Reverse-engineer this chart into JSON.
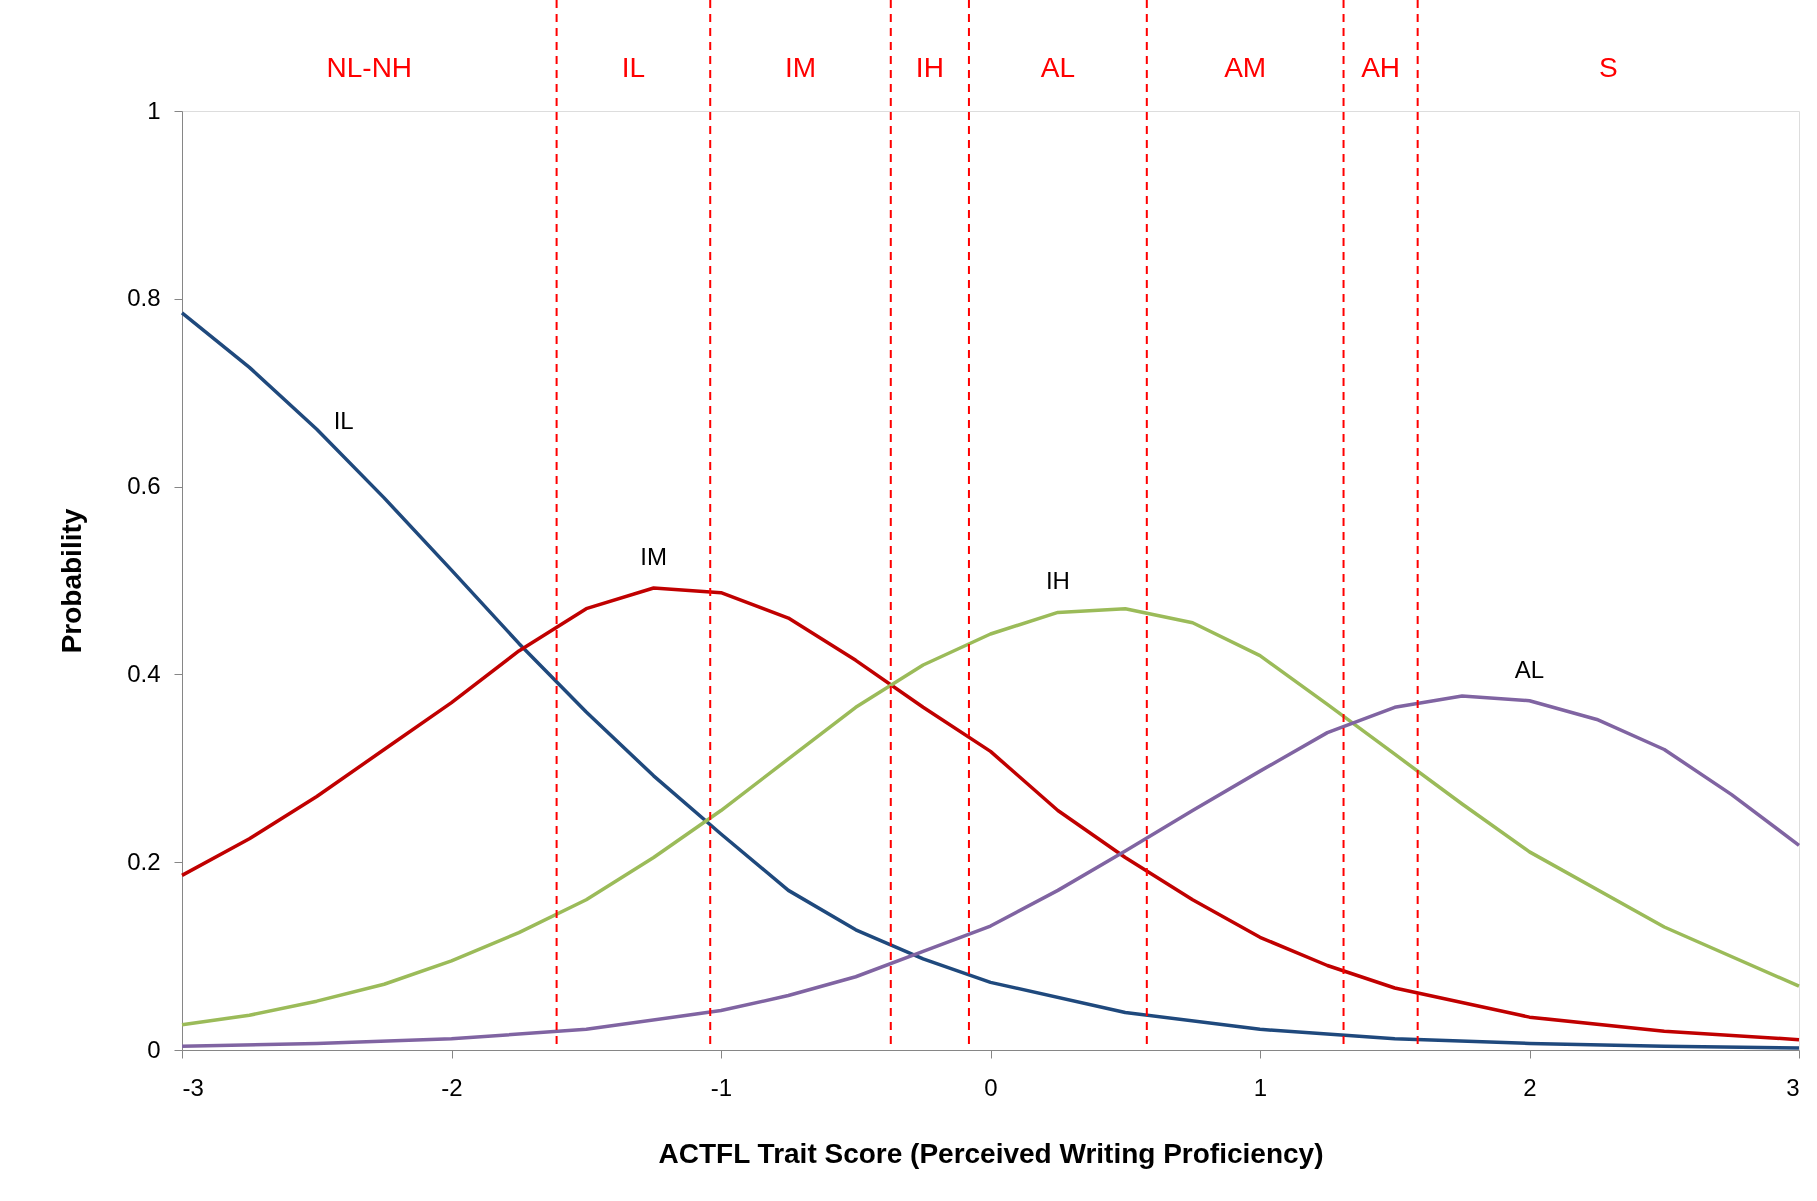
{
  "chart_data": {
    "type": "line",
    "xlabel": "ACTFL Trait Score (Perceived Writing Proficiency)",
    "ylabel": "Probability",
    "xlim": [
      -3,
      3
    ],
    "xticks": [
      -3,
      -2,
      -1,
      0,
      1,
      2,
      3
    ],
    "ylim": [
      0,
      1
    ],
    "yticks": [
      0,
      0.2,
      0.4,
      0.6,
      0.8,
      1
    ],
    "grid": false,
    "legend": false,
    "marker": "none",
    "line_style": "solid",
    "series": [
      {
        "color": "#1f497d",
        "x": [
          -3,
          -2.75,
          -2.5,
          -2.25,
          -2,
          -1.75,
          -1.5,
          -1.25,
          -1,
          -0.75,
          -0.5,
          -0.25,
          0,
          0.5,
          1,
          1.5,
          2,
          2.5,
          3
        ],
        "values": [
          0.785,
          0.727,
          0.661,
          0.588,
          0.511,
          0.433,
          0.36,
          0.292,
          0.23,
          0.17,
          0.128,
          0.097,
          0.072,
          0.04,
          0.022,
          0.012,
          0.007,
          0.004,
          0.002
        ]
      },
      {
        "color": "#c00000",
        "x": [
          -3,
          -2.75,
          -2.5,
          -2.25,
          -2,
          -1.75,
          -1.5,
          -1.25,
          -1,
          -0.75,
          -0.5,
          -0.25,
          0,
          0.25,
          0.5,
          0.75,
          1,
          1.25,
          1.5,
          2,
          2.5,
          3
        ],
        "values": [
          0.186,
          0.225,
          0.27,
          0.32,
          0.37,
          0.425,
          0.47,
          0.492,
          0.487,
          0.46,
          0.415,
          0.365,
          0.318,
          0.255,
          0.205,
          0.16,
          0.12,
          0.09,
          0.066,
          0.035,
          0.02,
          0.011
        ]
      },
      {
        "color": "#9bbb59",
        "x": [
          -3,
          -2.75,
          -2.5,
          -2.25,
          -2,
          -1.75,
          -1.5,
          -1.25,
          -1,
          -0.75,
          -0.5,
          -0.25,
          0,
          0.25,
          0.5,
          0.75,
          1,
          1.25,
          1.5,
          1.75,
          2,
          2.5,
          3
        ],
        "values": [
          0.027,
          0.037,
          0.052,
          0.07,
          0.095,
          0.125,
          0.16,
          0.205,
          0.255,
          0.31,
          0.365,
          0.41,
          0.443,
          0.466,
          0.47,
          0.455,
          0.42,
          0.368,
          0.315,
          0.262,
          0.211,
          0.131,
          0.068
        ]
      },
      {
        "color": "#8064a2",
        "x": [
          -3,
          -2.5,
          -2,
          -1.5,
          -1,
          -0.75,
          -0.5,
          -0.25,
          0,
          0.25,
          0.5,
          0.75,
          1,
          1.25,
          1.5,
          1.75,
          2,
          2.25,
          2.5,
          2.75,
          3
        ],
        "values": [
          0.004,
          0.007,
          0.012,
          0.022,
          0.042,
          0.058,
          0.078,
          0.105,
          0.132,
          0.17,
          0.212,
          0.255,
          0.297,
          0.338,
          0.365,
          0.377,
          0.372,
          0.352,
          0.32,
          0.272,
          0.218
        ]
      }
    ],
    "ref_lines": [
      {
        "axis": "x",
        "value": -1.61,
        "color": "#ff0000",
        "line_style": "dashed"
      },
      {
        "axis": "x",
        "value": -1.04,
        "color": "#ff0000",
        "line_style": "dashed"
      },
      {
        "axis": "x",
        "value": -0.37,
        "color": "#ff0000",
        "line_style": "dashed"
      },
      {
        "axis": "x",
        "value": -0.08,
        "color": "#ff0000",
        "line_style": "dashed"
      },
      {
        "axis": "x",
        "value": 0.58,
        "color": "#ff0000",
        "line_style": "dashed"
      },
      {
        "axis": "x",
        "value": 1.31,
        "color": "#ff0000",
        "line_style": "dashed"
      },
      {
        "axis": "x",
        "value": 1.585,
        "color": "#ff0000",
        "line_style": "dashed"
      }
    ],
    "annotations": [
      "NL-NH",
      "IL",
      "IM",
      "IH",
      "AL",
      "AM",
      "AH",
      "S",
      {
        "text": "IL",
        "x": -2.4,
        "y": 0.637
      },
      {
        "text": "IM",
        "x": -1.25,
        "y": 0.492
      },
      {
        "text": "IH",
        "x": 0.25,
        "y": 0.466
      },
      {
        "text": "AL",
        "x": 2,
        "y": 0.372
      }
    ]
  }
}
